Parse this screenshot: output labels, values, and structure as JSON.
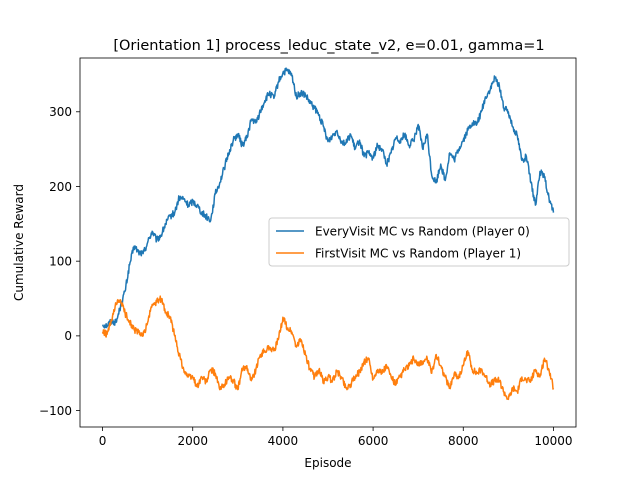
{
  "chart_data": {
    "type": "line",
    "title": "[Orientation 1] process_leduc_state_v2, e=0.01, gamma=1",
    "xlabel": "Episode",
    "ylabel": "Cumulative Reward",
    "xlim": [
      -500,
      10500
    ],
    "ylim": [
      -122,
      372
    ],
    "xticks": [
      0,
      2000,
      4000,
      6000,
      8000,
      10000
    ],
    "yticks": [
      -100,
      0,
      100,
      200,
      300
    ],
    "grid": false,
    "legend_position": "center-right",
    "series": [
      {
        "name": "EveryVisit MC vs Random (Player 0)",
        "color": "#1f77b4",
        "points": [
          [
            0,
            15
          ],
          [
            100,
            14
          ],
          [
            200,
            20
          ],
          [
            300,
            18
          ],
          [
            400,
            40
          ],
          [
            500,
            60
          ],
          [
            600,
            95
          ],
          [
            700,
            120
          ],
          [
            800,
            112
          ],
          [
            900,
            110
          ],
          [
            1000,
            125
          ],
          [
            1100,
            140
          ],
          [
            1200,
            128
          ],
          [
            1300,
            135
          ],
          [
            1400,
            150
          ],
          [
            1500,
            160
          ],
          [
            1600,
            165
          ],
          [
            1700,
            185
          ],
          [
            1800,
            183
          ],
          [
            1900,
            175
          ],
          [
            2000,
            180
          ],
          [
            2100,
            175
          ],
          [
            2200,
            165
          ],
          [
            2300,
            160
          ],
          [
            2400,
            155
          ],
          [
            2500,
            190
          ],
          [
            2600,
            205
          ],
          [
            2700,
            225
          ],
          [
            2800,
            245
          ],
          [
            2900,
            262
          ],
          [
            3000,
            270
          ],
          [
            3100,
            255
          ],
          [
            3200,
            265
          ],
          [
            3300,
            290
          ],
          [
            3400,
            285
          ],
          [
            3500,
            300
          ],
          [
            3600,
            315
          ],
          [
            3700,
            325
          ],
          [
            3800,
            318
          ],
          [
            3900,
            340
          ],
          [
            4000,
            352
          ],
          [
            4100,
            355
          ],
          [
            4200,
            348
          ],
          [
            4300,
            320
          ],
          [
            4400,
            325
          ],
          [
            4500,
            322
          ],
          [
            4600,
            312
          ],
          [
            4700,
            305
          ],
          [
            4800,
            295
          ],
          [
            4900,
            280
          ],
          [
            5000,
            260
          ],
          [
            5100,
            268
          ],
          [
            5200,
            275
          ],
          [
            5300,
            260
          ],
          [
            5400,
            258
          ],
          [
            5500,
            270
          ],
          [
            5600,
            250
          ],
          [
            5700,
            262
          ],
          [
            5800,
            240
          ],
          [
            5900,
            245
          ],
          [
            6000,
            238
          ],
          [
            6100,
            255
          ],
          [
            6200,
            250
          ],
          [
            6300,
            230
          ],
          [
            6400,
            245
          ],
          [
            6500,
            265
          ],
          [
            6600,
            262
          ],
          [
            6700,
            270
          ],
          [
            6800,
            255
          ],
          [
            6900,
            262
          ],
          [
            7000,
            283
          ],
          [
            7100,
            250
          ],
          [
            7200,
            270
          ],
          [
            7300,
            215
          ],
          [
            7400,
            205
          ],
          [
            7500,
            230
          ],
          [
            7600,
            208
          ],
          [
            7700,
            245
          ],
          [
            7800,
            235
          ],
          [
            7900,
            250
          ],
          [
            8000,
            262
          ],
          [
            8100,
            275
          ],
          [
            8200,
            285
          ],
          [
            8300,
            283
          ],
          [
            8400,
            300
          ],
          [
            8500,
            320
          ],
          [
            8600,
            330
          ],
          [
            8700,
            345
          ],
          [
            8800,
            335
          ],
          [
            8900,
            305
          ],
          [
            9000,
            300
          ],
          [
            9100,
            280
          ],
          [
            9200,
            268
          ],
          [
            9300,
            235
          ],
          [
            9400,
            240
          ],
          [
            9500,
            205
          ],
          [
            9600,
            175
          ],
          [
            9700,
            220
          ],
          [
            9800,
            212
          ],
          [
            9900,
            185
          ],
          [
            10000,
            165
          ]
        ]
      },
      {
        "name": "FirstVisit MC vs Random (Player 1)",
        "color": "#ff7f0e",
        "points": [
          [
            0,
            5
          ],
          [
            100,
            2
          ],
          [
            200,
            20
          ],
          [
            300,
            42
          ],
          [
            400,
            48
          ],
          [
            500,
            30
          ],
          [
            600,
            20
          ],
          [
            700,
            8
          ],
          [
            800,
            5
          ],
          [
            900,
            0
          ],
          [
            1000,
            18
          ],
          [
            1100,
            42
          ],
          [
            1200,
            45
          ],
          [
            1300,
            50
          ],
          [
            1400,
            32
          ],
          [
            1500,
            25
          ],
          [
            1600,
            0
          ],
          [
            1700,
            -25
          ],
          [
            1800,
            -45
          ],
          [
            1900,
            -55
          ],
          [
            2000,
            -55
          ],
          [
            2100,
            -68
          ],
          [
            2200,
            -55
          ],
          [
            2300,
            -62
          ],
          [
            2400,
            -45
          ],
          [
            2500,
            -50
          ],
          [
            2600,
            -72
          ],
          [
            2700,
            -65
          ],
          [
            2800,
            -55
          ],
          [
            2900,
            -60
          ],
          [
            3000,
            -72
          ],
          [
            3100,
            -45
          ],
          [
            3200,
            -40
          ],
          [
            3300,
            -60
          ],
          [
            3400,
            -45
          ],
          [
            3500,
            -25
          ],
          [
            3600,
            -20
          ],
          [
            3700,
            -15
          ],
          [
            3800,
            -20
          ],
          [
            3900,
            -5
          ],
          [
            4000,
            25
          ],
          [
            4100,
            10
          ],
          [
            4200,
            5
          ],
          [
            4300,
            -15
          ],
          [
            4400,
            -5
          ],
          [
            4500,
            -25
          ],
          [
            4600,
            -45
          ],
          [
            4700,
            -55
          ],
          [
            4800,
            -45
          ],
          [
            4900,
            -62
          ],
          [
            5000,
            -55
          ],
          [
            5100,
            -60
          ],
          [
            5200,
            -48
          ],
          [
            5300,
            -55
          ],
          [
            5400,
            -70
          ],
          [
            5500,
            -65
          ],
          [
            5600,
            -55
          ],
          [
            5700,
            -48
          ],
          [
            5800,
            -35
          ],
          [
            5900,
            -30
          ],
          [
            6000,
            -58
          ],
          [
            6100,
            -45
          ],
          [
            6200,
            -50
          ],
          [
            6300,
            -40
          ],
          [
            6400,
            -55
          ],
          [
            6500,
            -65
          ],
          [
            6600,
            -55
          ],
          [
            6700,
            -45
          ],
          [
            6800,
            -40
          ],
          [
            6900,
            -30
          ],
          [
            7000,
            -40
          ],
          [
            7100,
            -35
          ],
          [
            7200,
            -30
          ],
          [
            7300,
            -50
          ],
          [
            7400,
            -25
          ],
          [
            7500,
            -40
          ],
          [
            7600,
            -55
          ],
          [
            7700,
            -70
          ],
          [
            7800,
            -50
          ],
          [
            7900,
            -55
          ],
          [
            8000,
            -40
          ],
          [
            8100,
            -20
          ],
          [
            8200,
            -45
          ],
          [
            8300,
            -50
          ],
          [
            8400,
            -45
          ],
          [
            8500,
            -55
          ],
          [
            8600,
            -65
          ],
          [
            8700,
            -60
          ],
          [
            8800,
            -60
          ],
          [
            8900,
            -75
          ],
          [
            9000,
            -85
          ],
          [
            9100,
            -70
          ],
          [
            9200,
            -75
          ],
          [
            9300,
            -55
          ],
          [
            9400,
            -60
          ],
          [
            9500,
            -60
          ],
          [
            9600,
            -45
          ],
          [
            9700,
            -55
          ],
          [
            9800,
            -30
          ],
          [
            9900,
            -45
          ],
          [
            10000,
            -70
          ]
        ]
      }
    ]
  }
}
